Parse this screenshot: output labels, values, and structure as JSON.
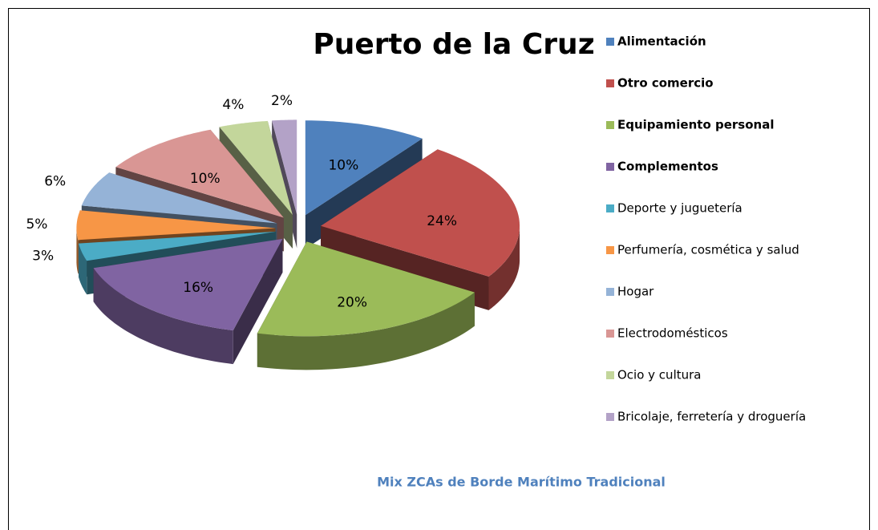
{
  "chart_data": {
    "type": "pie3d",
    "title": "Puerto de la Cruz",
    "subtitle": "Mix ZCAs de Borde Marítimo Tradicional",
    "categories": [
      "Alimentación",
      "Otro comercio",
      "Equipamiento personal",
      "Complementos",
      "Deporte y juguetería",
      "Perfumería, cosmética y salud",
      "Hogar",
      "Electrodomésticos",
      "Ocio y cultura",
      "Bricolaje, ferretería y droguería"
    ],
    "values": [
      10,
      24,
      20,
      16,
      3,
      5,
      6,
      10,
      4,
      2
    ],
    "value_labels": [
      "10%",
      "24%",
      "20%",
      "16%",
      "3%",
      "5%",
      "6%",
      "10%",
      "4%",
      "2%"
    ],
    "colors": [
      "#4f81bd",
      "#c0504d",
      "#9bbb59",
      "#8064a2",
      "#4bacc6",
      "#f79646",
      "#95b3d7",
      "#d99694",
      "#c3d69b",
      "#b3a2c7"
    ],
    "legend_bold": [
      true,
      true,
      true,
      true,
      false,
      false,
      false,
      false,
      false,
      false
    ],
    "legend": "right"
  }
}
